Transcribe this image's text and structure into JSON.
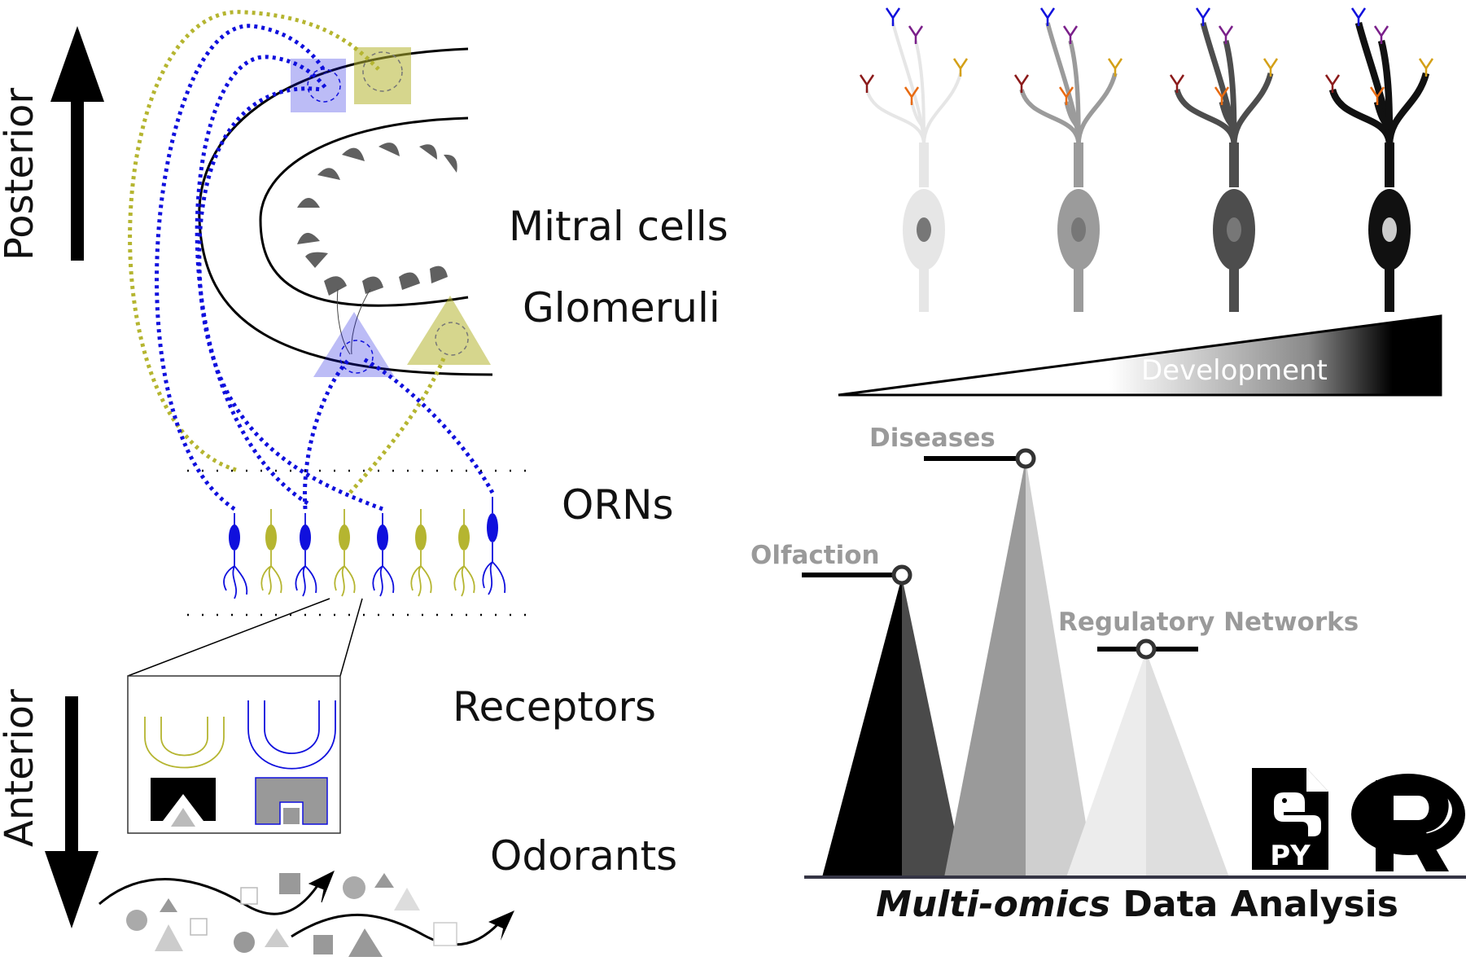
{
  "axis": {
    "posterior": "Posterior",
    "anterior": "Anterior"
  },
  "labels": {
    "mitral_cells": "Mitral cells",
    "glomeruli": "Glomeruli",
    "orns": "ORNs",
    "receptors": "Receptors",
    "odorants": "Odorants"
  },
  "development": {
    "label": "Development",
    "stage_colors": [
      "#e6e6e6",
      "#9b9b9b",
      "#4d4d4d",
      "#111111"
    ]
  },
  "peaks": [
    {
      "label": "Olfaction"
    },
    {
      "label": "Diseases"
    },
    {
      "label": "Regulatory Networks"
    }
  ],
  "bottom_title": {
    "italic": "Multi-omics",
    "rest": " Data Analysis"
  },
  "logos": {
    "python": "PY"
  },
  "colors": {
    "blue": "#1010dd",
    "olive": "#b5b530",
    "mitral_gray": "#606060"
  }
}
